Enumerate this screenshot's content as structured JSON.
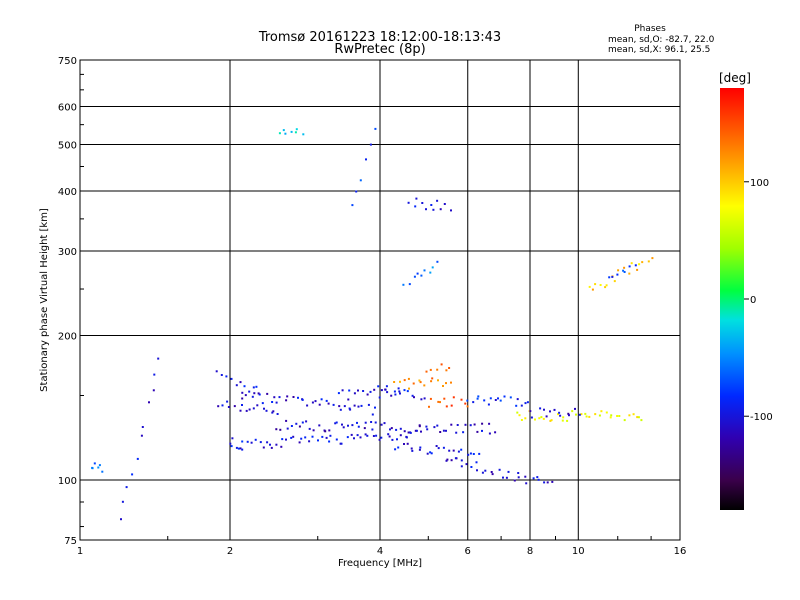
{
  "chart_data": {
    "type": "scatter",
    "title": "Tromsø 20161223 18:12:00-18:13:43",
    "subtitle": "RwPretec (8p)",
    "stats": {
      "heading": "Phases",
      "line1": "mean, sd,O: -82.7, 22.0",
      "line2": "mean, sd,X:  96.1, 25.5"
    },
    "xlabel": "Frequency [MHz]",
    "ylabel": "Stationary phase Virtual Height [km]",
    "xscale": "log",
    "yscale": "log",
    "xlim": [
      1,
      16
    ],
    "ylim": [
      75,
      750
    ],
    "xticks": [
      1,
      2,
      4,
      6,
      8,
      10,
      16
    ],
    "yticks": [
      75,
      100,
      200,
      300,
      400,
      500,
      600,
      750
    ],
    "grid": true,
    "colorbar": {
      "label": "[deg]",
      "range": [
        -180,
        180
      ],
      "ticks": [
        100,
        0,
        -100
      ],
      "colormap": "rainbow (black-purple-blue-cyan-green-yellow-orange-red)"
    },
    "series": [
      {
        "x": [
          1.9,
          2.3
        ],
        "y": [
          165,
          152
        ],
        "phase": -100
      },
      {
        "x": [
          1.9,
          2.5
        ],
        "y": [
          145,
          138
        ],
        "phase": -110
      },
      {
        "x": [
          2.0,
          2.1
        ],
        "y": [
          120,
          118
        ],
        "phase": -95
      },
      {
        "x": [
          2.1,
          3.9
        ],
        "y": [
          150,
          140
        ],
        "phase": -105
      },
      {
        "x": [
          2.5,
          6.8
        ],
        "y": [
          130,
          128
        ],
        "phase": -110
      },
      {
        "x": [
          2.1,
          4.8
        ],
        "y": [
          118,
          125
        ],
        "phase": -100
      },
      {
        "x": [
          3.3,
          4.4
        ],
        "y": [
          150,
          155
        ],
        "phase": -100
      },
      {
        "x": [
          4.0,
          4.9
        ],
        "y": [
          152,
          150
        ],
        "phase": -100
      },
      {
        "x": [
          4.3,
          5.5
        ],
        "y": [
          158,
          160
        ],
        "phase": 125
      },
      {
        "x": [
          5.0,
          6.0
        ],
        "y": [
          145,
          146
        ],
        "phase": 150
      },
      {
        "x": [
          5.0,
          5.5
        ],
        "y": [
          172,
          172
        ],
        "phase": 140
      },
      {
        "x": [
          6.0,
          8.0
        ],
        "y": [
          146,
          146
        ],
        "phase": -90
      },
      {
        "x": [
          7.5,
          13.5
        ],
        "y": [
          136,
          136
        ],
        "phase": 80
      },
      {
        "x": [
          8.0,
          10.0
        ],
        "y": [
          138,
          140
        ],
        "phase": -110
      },
      {
        "x": [
          5.4,
          8.8
        ],
        "y": [
          110,
          98
        ],
        "phase": -105
      },
      {
        "x": [
          4.3,
          6.3
        ],
        "y": [
          118,
          112
        ],
        "phase": -100
      },
      {
        "x": [
          10.5,
          14.0
        ],
        "y": [
          248,
          290
        ],
        "phase": 100
      },
      {
        "x": [
          11.5,
          13.0
        ],
        "y": [
          265,
          280
        ],
        "phase": -80
      },
      {
        "x": [
          4.6,
          5.5
        ],
        "y": [
          380,
          370
        ],
        "phase": -100
      },
      {
        "x": [
          2.5,
          2.8
        ],
        "y": [
          525,
          530
        ],
        "phase": -30
      },
      {
        "x": [
          3.5,
          3.9
        ],
        "y": [
          365,
          530
        ],
        "phase": -80
      },
      {
        "x": [
          4.5,
          5.2
        ],
        "y": [
          260,
          280
        ],
        "phase": -60
      },
      {
        "x": [
          1.05,
          1.1
        ],
        "y": [
          108,
          106
        ],
        "phase": -60
      },
      {
        "x": [
          1.2,
          1.45
        ],
        "y": [
          82,
          180
        ],
        "phase": -100
      }
    ]
  }
}
